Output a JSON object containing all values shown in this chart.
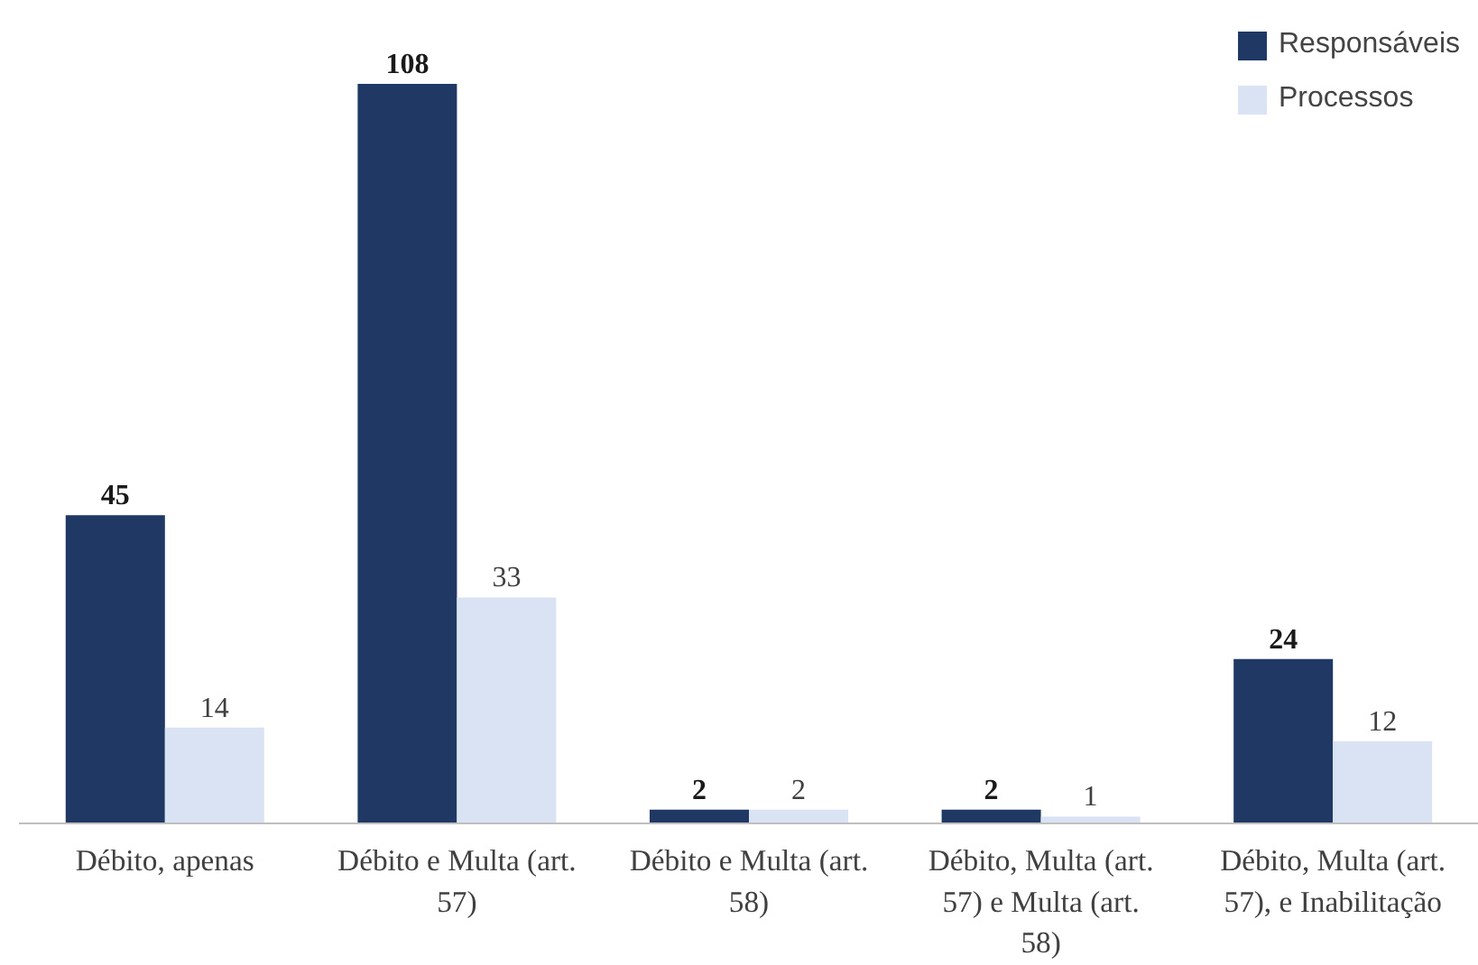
{
  "chart_data": {
    "type": "bar",
    "categories": [
      "Débito, apenas",
      "Débito e Multa (art. 57)",
      "Débito e Multa (art. 58)",
      "Débito, Multa (art. 57) e Multa (art. 58)",
      "Débito, Multa (art. 57), e Inabilitação"
    ],
    "series": [
      {
        "name": "Responsáveis",
        "color": "#203864",
        "values": [
          45,
          108,
          2,
          2,
          24
        ]
      },
      {
        "name": "Processos",
        "color": "#dae3f3",
        "values": [
          14,
          33,
          2,
          1,
          12
        ]
      }
    ],
    "data_labels": true,
    "legend": "top right",
    "grid": false
  }
}
